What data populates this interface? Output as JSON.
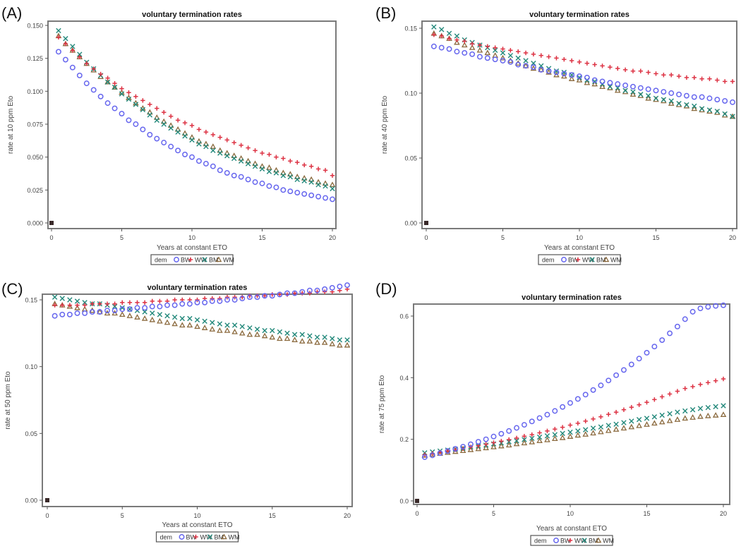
{
  "figure": {
    "panels": [
      "(A)",
      "(B)",
      "(C)",
      "(D)"
    ]
  },
  "legend": {
    "title": "dem",
    "entries": [
      {
        "name": "BW",
        "marker": "circle",
        "color": "#6666ee"
      },
      {
        "name": "WW",
        "marker": "plus",
        "color": "#dd3344"
      },
      {
        "name": "BM",
        "marker": "x",
        "color": "#22887a"
      },
      {
        "name": "WM",
        "marker": "triangle",
        "color": "#8b6a3e"
      }
    ]
  },
  "chart_data": [
    {
      "panel": "(A)",
      "type": "scatter",
      "title": "voluntary termination rates",
      "xlabel": "Years at constant ETO",
      "ylabel": "rate at 10 ppm Eto",
      "xlim": [
        0,
        20
      ],
      "ylim": [
        0,
        0.15
      ],
      "xticks": [
        0,
        5,
        10,
        15,
        20
      ],
      "xtick_labels": [
        "0",
        "5",
        "10",
        "15",
        "20"
      ],
      "yticks": [
        0,
        0.025,
        0.05,
        0.075,
        0.1,
        0.125,
        0.15
      ],
      "ytick_labels": [
        "0.000",
        "0.025",
        "0.050",
        "0.075",
        "0.100",
        "0.125",
        "0.150"
      ],
      "grid": false,
      "legend_position": "bottom",
      "x": [
        0,
        0.5,
        1,
        1.5,
        2,
        2.5,
        3,
        3.5,
        4,
        4.5,
        5,
        5.5,
        6,
        6.5,
        7,
        7.5,
        8,
        8.5,
        9,
        9.5,
        10,
        10.5,
        11,
        11.5,
        12,
        12.5,
        13,
        13.5,
        14,
        14.5,
        15,
        15.5,
        16,
        16.5,
        17,
        17.5,
        18,
        18.5,
        19,
        19.5,
        20
      ],
      "series": [
        {
          "name": "BW",
          "values": [
            0,
            0.13,
            0.124,
            0.118,
            0.112,
            0.106,
            0.101,
            0.096,
            0.091,
            0.087,
            0.083,
            0.078,
            0.075,
            0.071,
            0.067,
            0.064,
            0.061,
            0.058,
            0.055,
            0.052,
            0.05,
            0.047,
            0.045,
            0.043,
            0.04,
            0.038,
            0.036,
            0.035,
            0.033,
            0.031,
            0.03,
            0.028,
            0.027,
            0.025,
            0.024,
            0.023,
            0.022,
            0.021,
            0.02,
            0.019,
            0.018
          ]
        },
        {
          "name": "WW",
          "values": [
            0,
            0.141,
            0.136,
            0.131,
            0.126,
            0.121,
            0.117,
            0.113,
            0.11,
            0.106,
            0.102,
            0.099,
            0.096,
            0.093,
            0.09,
            0.087,
            0.084,
            0.081,
            0.078,
            0.076,
            0.074,
            0.071,
            0.069,
            0.067,
            0.065,
            0.063,
            0.061,
            0.059,
            0.057,
            0.055,
            0.053,
            0.052,
            0.05,
            0.049,
            0.047,
            0.046,
            0.044,
            0.043,
            0.041,
            0.04,
            0.036
          ]
        },
        {
          "name": "BM",
          "values": [
            0,
            0.146,
            0.14,
            0.134,
            0.128,
            0.122,
            0.117,
            0.112,
            0.107,
            0.103,
            0.098,
            0.094,
            0.09,
            0.086,
            0.082,
            0.078,
            0.075,
            0.072,
            0.069,
            0.066,
            0.063,
            0.06,
            0.058,
            0.055,
            0.053,
            0.051,
            0.049,
            0.047,
            0.045,
            0.043,
            0.041,
            0.039,
            0.038,
            0.036,
            0.035,
            0.033,
            0.032,
            0.031,
            0.029,
            0.028,
            0.026
          ]
        },
        {
          "name": "WM",
          "values": [
            0,
            0.142,
            0.136,
            0.131,
            0.126,
            0.121,
            0.116,
            0.111,
            0.107,
            0.103,
            0.099,
            0.095,
            0.091,
            0.087,
            0.084,
            0.08,
            0.077,
            0.074,
            0.071,
            0.068,
            0.065,
            0.062,
            0.06,
            0.058,
            0.055,
            0.053,
            0.051,
            0.049,
            0.047,
            0.045,
            0.043,
            0.042,
            0.04,
            0.038,
            0.037,
            0.035,
            0.034,
            0.033,
            0.031,
            0.03,
            0.029
          ]
        }
      ]
    },
    {
      "panel": "(B)",
      "type": "scatter",
      "title": "voluntary termination rates",
      "xlabel": "Years at constant ETO",
      "ylabel": "rate at 40 ppm Eto",
      "xlim": [
        0,
        20
      ],
      "ylim": [
        0,
        0.15
      ],
      "xticks": [
        0,
        5,
        10,
        15,
        20
      ],
      "xtick_labels": [
        "0",
        "5",
        "10",
        "15",
        "20"
      ],
      "yticks": [
        0,
        0.05,
        0.1,
        0.15
      ],
      "ytick_labels": [
        "0.00",
        "0.05",
        "0.10",
        "0.15"
      ],
      "grid": false,
      "legend_position": "bottom",
      "x": [
        0,
        0.5,
        1,
        1.5,
        2,
        2.5,
        3,
        3.5,
        4,
        4.5,
        5,
        5.5,
        6,
        6.5,
        7,
        7.5,
        8,
        8.5,
        9,
        9.5,
        10,
        10.5,
        11,
        11.5,
        12,
        12.5,
        13,
        13.5,
        14,
        14.5,
        15,
        15.5,
        16,
        16.5,
        17,
        17.5,
        18,
        18.5,
        19,
        19.5,
        20
      ],
      "series": [
        {
          "name": "BW",
          "values": [
            0,
            0.136,
            0.135,
            0.134,
            0.132,
            0.131,
            0.13,
            0.128,
            0.127,
            0.126,
            0.125,
            0.124,
            0.122,
            0.121,
            0.12,
            0.118,
            0.117,
            0.116,
            0.115,
            0.114,
            0.113,
            0.112,
            0.11,
            0.109,
            0.108,
            0.107,
            0.106,
            0.105,
            0.104,
            0.103,
            0.102,
            0.101,
            0.1,
            0.099,
            0.098,
            0.097,
            0.097,
            0.096,
            0.095,
            0.094,
            0.093
          ]
        },
        {
          "name": "WW",
          "values": [
            0,
            0.145,
            0.144,
            0.142,
            0.141,
            0.14,
            0.138,
            0.137,
            0.136,
            0.135,
            0.134,
            0.133,
            0.132,
            0.131,
            0.13,
            0.129,
            0.128,
            0.127,
            0.126,
            0.125,
            0.124,
            0.123,
            0.122,
            0.121,
            0.12,
            0.119,
            0.118,
            0.117,
            0.117,
            0.116,
            0.115,
            0.114,
            0.114,
            0.113,
            0.112,
            0.112,
            0.111,
            0.111,
            0.11,
            0.109,
            0.109
          ]
        },
        {
          "name": "BM",
          "values": [
            0,
            0.151,
            0.149,
            0.146,
            0.144,
            0.141,
            0.139,
            0.137,
            0.135,
            0.133,
            0.131,
            0.129,
            0.127,
            0.125,
            0.123,
            0.121,
            0.119,
            0.117,
            0.116,
            0.114,
            0.112,
            0.11,
            0.109,
            0.107,
            0.105,
            0.104,
            0.102,
            0.101,
            0.099,
            0.098,
            0.096,
            0.095,
            0.094,
            0.092,
            0.091,
            0.09,
            0.088,
            0.087,
            0.086,
            0.084,
            0.082
          ]
        },
        {
          "name": "WM",
          "values": [
            0,
            0.146,
            0.144,
            0.142,
            0.139,
            0.137,
            0.135,
            0.133,
            0.131,
            0.129,
            0.127,
            0.125,
            0.123,
            0.121,
            0.119,
            0.118,
            0.116,
            0.114,
            0.113,
            0.111,
            0.11,
            0.108,
            0.107,
            0.105,
            0.104,
            0.102,
            0.101,
            0.099,
            0.098,
            0.096,
            0.095,
            0.094,
            0.092,
            0.091,
            0.09,
            0.088,
            0.087,
            0.086,
            0.085,
            0.083,
            0.082
          ]
        }
      ]
    },
    {
      "panel": "(C)",
      "type": "scatter",
      "title": "voluntary termination rates",
      "xlabel": "Years at constant ETO",
      "ylabel": "rate at 50 ppm Eto",
      "xlim": [
        0,
        20
      ],
      "ylim": [
        0,
        0.162
      ],
      "xticks": [
        0,
        5,
        10,
        15,
        20
      ],
      "xtick_labels": [
        "0",
        "5",
        "10",
        "15",
        "20"
      ],
      "yticks": [
        0,
        0.05,
        0.1,
        0.15
      ],
      "ytick_labels": [
        "0.00",
        "0.05",
        "0.10",
        "0.15"
      ],
      "grid": false,
      "legend_position": "bottom",
      "x": [
        0,
        0.5,
        1,
        1.5,
        2,
        2.5,
        3,
        3.5,
        4,
        4.5,
        5,
        5.5,
        6,
        6.5,
        7,
        7.5,
        8,
        8.5,
        9,
        9.5,
        10,
        10.5,
        11,
        11.5,
        12,
        12.5,
        13,
        13.5,
        14,
        14.5,
        15,
        15.5,
        16,
        16.5,
        17,
        17.5,
        18,
        18.5,
        19,
        19.5,
        20
      ],
      "series": [
        {
          "name": "BW",
          "values": [
            0,
            0.138,
            0.139,
            0.139,
            0.14,
            0.14,
            0.141,
            0.141,
            0.142,
            0.142,
            0.143,
            0.143,
            0.144,
            0.144,
            0.145,
            0.145,
            0.146,
            0.146,
            0.147,
            0.147,
            0.148,
            0.148,
            0.149,
            0.149,
            0.15,
            0.15,
            0.151,
            0.152,
            0.152,
            0.153,
            0.153,
            0.154,
            0.155,
            0.155,
            0.156,
            0.157,
            0.157,
            0.158,
            0.159,
            0.16,
            0.161
          ]
        },
        {
          "name": "WW",
          "values": [
            0,
            0.146,
            0.146,
            0.146,
            0.146,
            0.146,
            0.147,
            0.147,
            0.147,
            0.147,
            0.148,
            0.148,
            0.148,
            0.148,
            0.149,
            0.149,
            0.149,
            0.15,
            0.15,
            0.15,
            0.15,
            0.151,
            0.151,
            0.151,
            0.152,
            0.152,
            0.152,
            0.153,
            0.153,
            0.153,
            0.154,
            0.154,
            0.154,
            0.155,
            0.155,
            0.155,
            0.156,
            0.156,
            0.156,
            0.157,
            0.158
          ]
        },
        {
          "name": "BM",
          "values": [
            0,
            0.152,
            0.151,
            0.15,
            0.149,
            0.148,
            0.147,
            0.147,
            0.146,
            0.145,
            0.144,
            0.143,
            0.142,
            0.141,
            0.14,
            0.139,
            0.138,
            0.137,
            0.136,
            0.136,
            0.135,
            0.134,
            0.133,
            0.132,
            0.131,
            0.131,
            0.13,
            0.129,
            0.128,
            0.127,
            0.127,
            0.126,
            0.125,
            0.124,
            0.124,
            0.123,
            0.122,
            0.122,
            0.121,
            0.12,
            0.12
          ]
        },
        {
          "name": "WM",
          "values": [
            0,
            0.147,
            0.146,
            0.145,
            0.144,
            0.143,
            0.142,
            0.141,
            0.14,
            0.14,
            0.139,
            0.138,
            0.137,
            0.136,
            0.135,
            0.134,
            0.133,
            0.132,
            0.131,
            0.131,
            0.13,
            0.129,
            0.128,
            0.127,
            0.127,
            0.126,
            0.125,
            0.124,
            0.124,
            0.123,
            0.122,
            0.121,
            0.121,
            0.12,
            0.119,
            0.119,
            0.118,
            0.118,
            0.117,
            0.116,
            0.116
          ]
        }
      ]
    },
    {
      "panel": "(D)",
      "type": "scatter",
      "title": "voluntary termination rates",
      "xlabel": "Years at constant ETO",
      "ylabel": "rate at 75 ppm Eto",
      "xlim": [
        0,
        20
      ],
      "ylim": [
        0,
        0.65
      ],
      "xticks": [
        0,
        5,
        10,
        15,
        20
      ],
      "xtick_labels": [
        "0",
        "5",
        "10",
        "15",
        "20"
      ],
      "yticks": [
        0,
        0.2,
        0.4,
        0.6
      ],
      "ytick_labels": [
        "0.0",
        "0.2",
        "0.4",
        "0.6"
      ],
      "grid": false,
      "legend_position": "bottom",
      "x": [
        0,
        0.5,
        1,
        1.5,
        2,
        2.5,
        3,
        3.5,
        4,
        4.5,
        5,
        5.5,
        6,
        6.5,
        7,
        7.5,
        8,
        8.5,
        9,
        9.5,
        10,
        10.5,
        11,
        11.5,
        12,
        12.5,
        13,
        13.5,
        14,
        14.5,
        15,
        15.5,
        16,
        16.5,
        17,
        17.5,
        18,
        18.5,
        19,
        19.5,
        20
      ],
      "series": [
        {
          "name": "BW",
          "values": [
            0,
            0.142,
            0.148,
            0.155,
            0.162,
            0.169,
            0.176,
            0.184,
            0.192,
            0.2,
            0.209,
            0.218,
            0.227,
            0.237,
            0.247,
            0.258,
            0.269,
            0.28,
            0.292,
            0.305,
            0.318,
            0.331,
            0.345,
            0.36,
            0.375,
            0.391,
            0.408,
            0.425,
            0.443,
            0.462,
            0.481,
            0.501,
            0.522,
            0.544,
            0.566,
            0.59,
            0.614,
            0.625,
            0.63,
            0.633,
            0.635
          ]
        },
        {
          "name": "WW",
          "values": [
            0,
            0.15,
            0.154,
            0.158,
            0.162,
            0.166,
            0.17,
            0.175,
            0.179,
            0.184,
            0.189,
            0.194,
            0.199,
            0.204,
            0.21,
            0.215,
            0.221,
            0.227,
            0.233,
            0.239,
            0.246,
            0.252,
            0.259,
            0.266,
            0.273,
            0.281,
            0.288,
            0.296,
            0.304,
            0.312,
            0.32,
            0.329,
            0.338,
            0.347,
            0.356,
            0.365,
            0.371,
            0.378,
            0.384,
            0.39,
            0.396
          ]
        },
        {
          "name": "BM",
          "values": [
            0,
            0.156,
            0.159,
            0.162,
            0.165,
            0.168,
            0.171,
            0.175,
            0.178,
            0.181,
            0.185,
            0.188,
            0.192,
            0.195,
            0.199,
            0.203,
            0.207,
            0.211,
            0.215,
            0.219,
            0.223,
            0.227,
            0.231,
            0.236,
            0.24,
            0.245,
            0.249,
            0.254,
            0.259,
            0.264,
            0.268,
            0.273,
            0.278,
            0.283,
            0.288,
            0.292,
            0.296,
            0.3,
            0.303,
            0.306,
            0.309
          ]
        },
        {
          "name": "WM",
          "values": [
            0,
            0.148,
            0.151,
            0.154,
            0.157,
            0.16,
            0.163,
            0.166,
            0.169,
            0.172,
            0.175,
            0.178,
            0.181,
            0.185,
            0.188,
            0.191,
            0.195,
            0.198,
            0.202,
            0.205,
            0.209,
            0.213,
            0.216,
            0.22,
            0.224,
            0.228,
            0.232,
            0.236,
            0.24,
            0.244,
            0.248,
            0.252,
            0.256,
            0.26,
            0.264,
            0.268,
            0.271,
            0.274,
            0.276,
            0.278,
            0.28
          ]
        }
      ]
    }
  ]
}
